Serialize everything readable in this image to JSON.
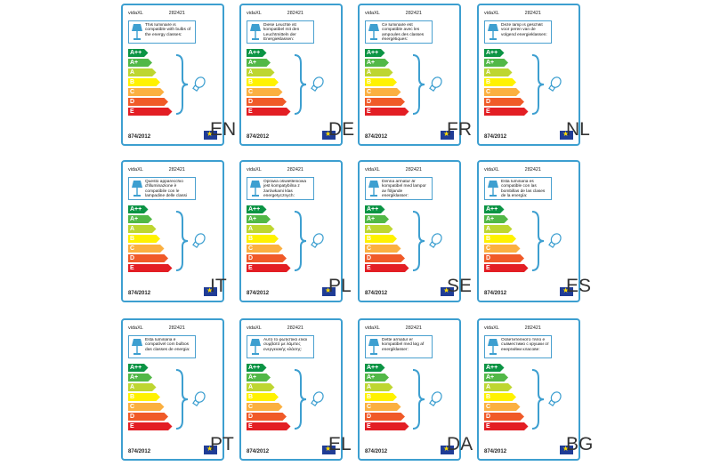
{
  "common": {
    "brand": "vidaXL",
    "code": "282421",
    "regulation": "874/2012",
    "classes": [
      "A++",
      "A+",
      "A",
      "B",
      "C",
      "D",
      "E"
    ],
    "class_colors": [
      "#0b9444",
      "#52b847",
      "#bed631",
      "#fff200",
      "#fbb040",
      "#f05a28",
      "#e31e24"
    ],
    "accent": "#3d9fd0"
  },
  "labels": [
    {
      "lang": "EN",
      "text": "This luminaire is compatible with bulbs of the energy classes:"
    },
    {
      "lang": "DE",
      "text": "Diese Leuchte ist kompatibel mit den Leuchtmitteln der Energieklassen:"
    },
    {
      "lang": "FR",
      "text": "Ce luminaire est compatible avec les ampoules des classes énergétiques:"
    },
    {
      "lang": "NL",
      "text": "Deze lamp is geschikt voor peren van de volgend energieklassen:"
    },
    {
      "lang": "IT",
      "text": "Questo apparecchio d'illuminazione è compatibile con le lampadine delle classi energetiche:"
    },
    {
      "lang": "PL",
      "text": "Oprawa oświetleniowa jest kompatybilna z żarówkami klas energetycznych:"
    },
    {
      "lang": "SE",
      "text": "Denna armatur är kompatibel med lampor av följande energiklasser:"
    },
    {
      "lang": "ES",
      "text": "Esta luminaria es compatible con las bombillas de las clases de la energía:"
    },
    {
      "lang": "PT",
      "text": "Esta luminária é compatível com bulbos das classes de energia:"
    },
    {
      "lang": "EL",
      "text": "Αυτό το φωτιστικό είναι συμβατό με λάμπες ενεργειακής κλάσης:"
    },
    {
      "lang": "DA",
      "text": "Dette armatur er kompatibel med løg af energiklasser:"
    },
    {
      "lang": "BG",
      "text": "Осветителното тяло е съвместимо с крушки от енергийни класове:"
    }
  ]
}
